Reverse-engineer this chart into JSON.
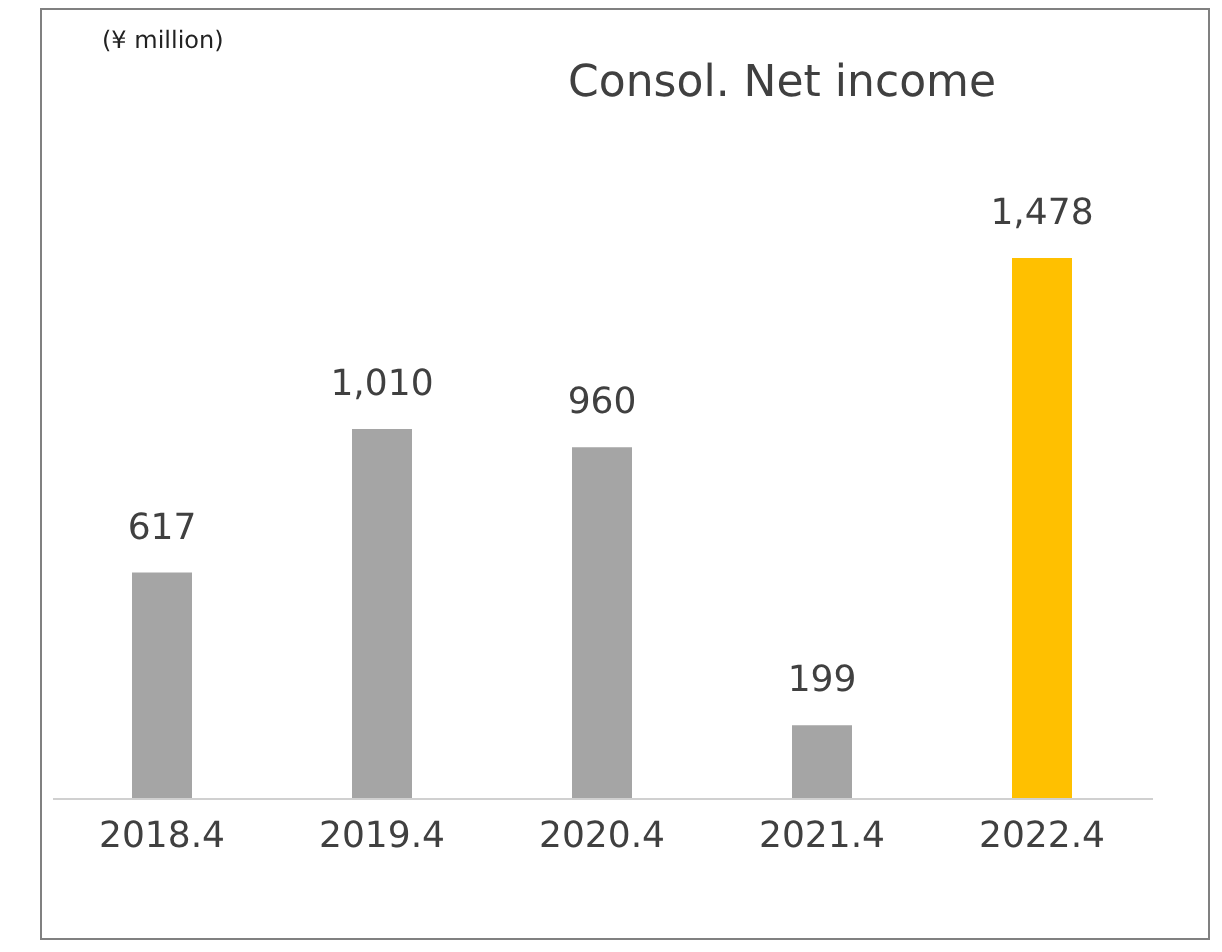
{
  "chart_data": {
    "type": "bar",
    "title": "Consol. Net income",
    "annotations": [
      "(¥ million)"
    ],
    "categories": [
      "2018.4",
      "2019.4",
      "2020.4",
      "2021.4",
      "2022.4"
    ],
    "values": [
      617,
      1010,
      960,
      199,
      1478
    ],
    "colors": [
      "#a5a5a5",
      "#a5a5a5",
      "#a5a5a5",
      "#a5a5a5",
      "#ffc000"
    ],
    "value_labels": [
      "617",
      "1,010",
      "960",
      "199",
      "1,478"
    ]
  }
}
